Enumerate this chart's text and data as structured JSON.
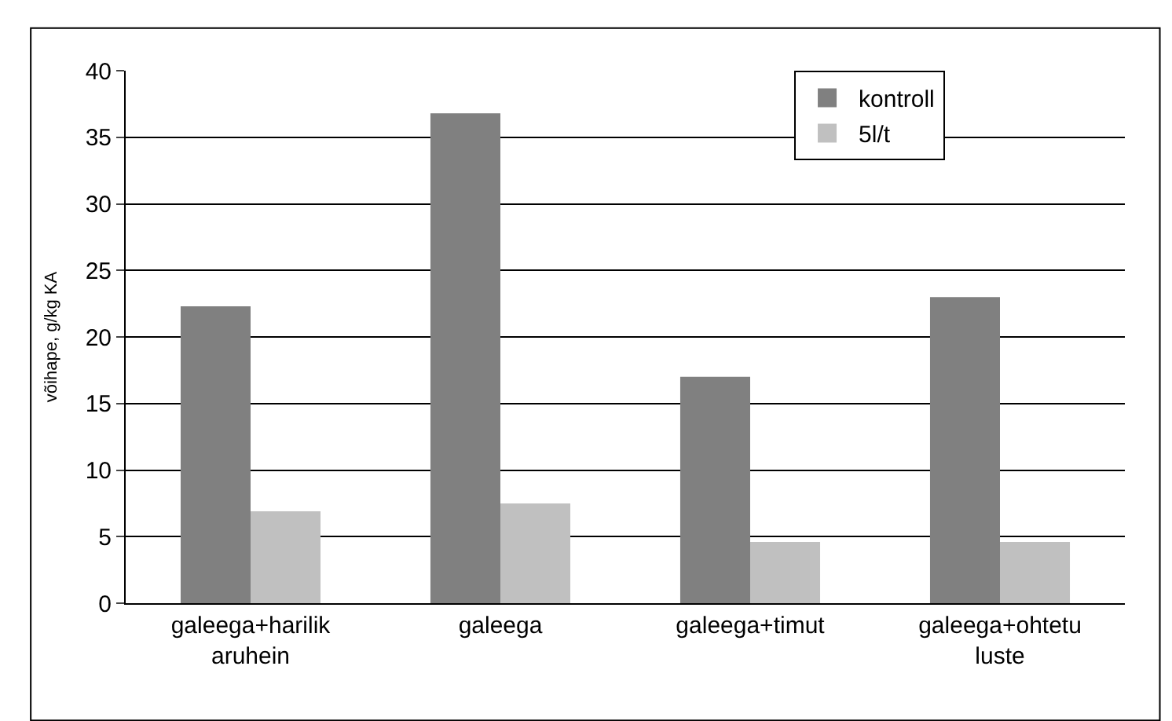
{
  "chart_data": {
    "type": "bar",
    "ylabel": "võihape, g/kg KA",
    "categories": [
      "galeega+harilik\naruhein",
      "galeega",
      "galeega+timut",
      "galeega+ohtetu\nluste"
    ],
    "series": [
      {
        "name": "kontroll",
        "color": "#808080",
        "values": [
          22.3,
          36.8,
          17.0,
          23.0
        ]
      },
      {
        "name": "5l/t",
        "color": "#c0c0c0",
        "values": [
          6.9,
          7.5,
          4.6,
          4.6
        ]
      }
    ],
    "ylim": [
      0,
      40
    ],
    "yticks": [
      0,
      5,
      10,
      15,
      20,
      25,
      30,
      35,
      40
    ],
    "grid": "y",
    "legend": "top right"
  }
}
